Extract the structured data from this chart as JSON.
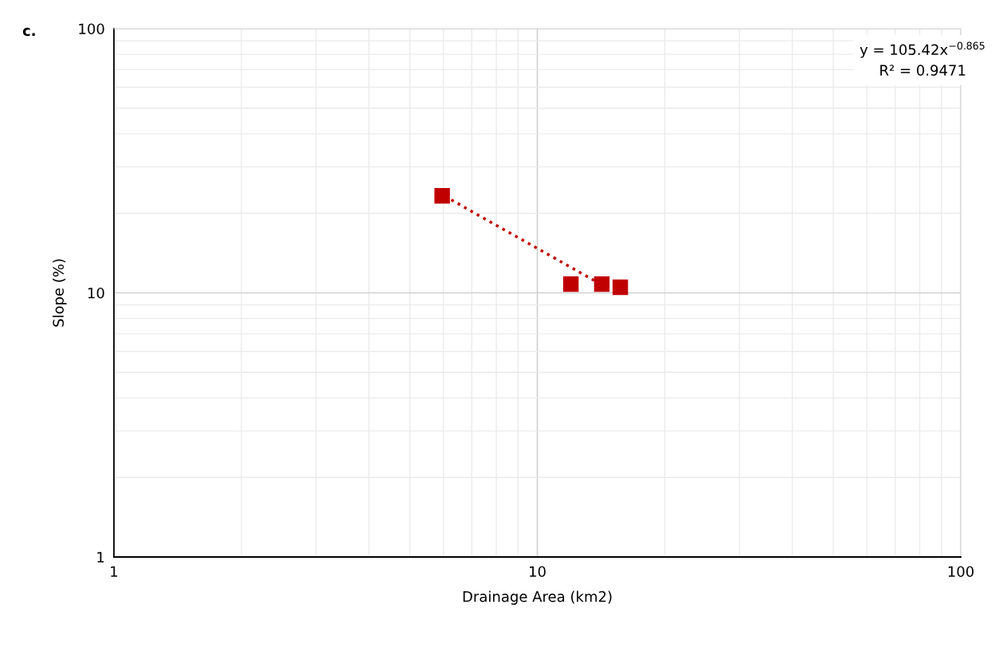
{
  "chart_data": {
    "type": "scatter",
    "xlabel": "Drainage Area (km2)",
    "ylabel": "Slope (%)",
    "annotations": [
      "c.",
      "y = 105.42x$^{−0.865}$\nR² = 0.9471"
    ],
    "log": "xy",
    "grid": true,
    "xlim": [
      1,
      100
    ],
    "xticks": [
      1,
      10,
      100
    ],
    "ylim": [
      1,
      100
    ],
    "yticks": [
      1,
      10,
      100
    ],
    "series": [
      {
        "color": "#c00000",
        "marker": "square",
        "x": [
          5.96,
          12.0,
          14.2,
          15.7
        ],
        "values": [
          23.3,
          10.8,
          10.8,
          10.5
        ]
      },
      {
        "type": "line",
        "color": "#c00000",
        "line_style": "dotted",
        "x": [
          6.05,
          13.96
        ],
        "values": [
          23.2,
          10.9
        ]
      }
    ]
  }
}
